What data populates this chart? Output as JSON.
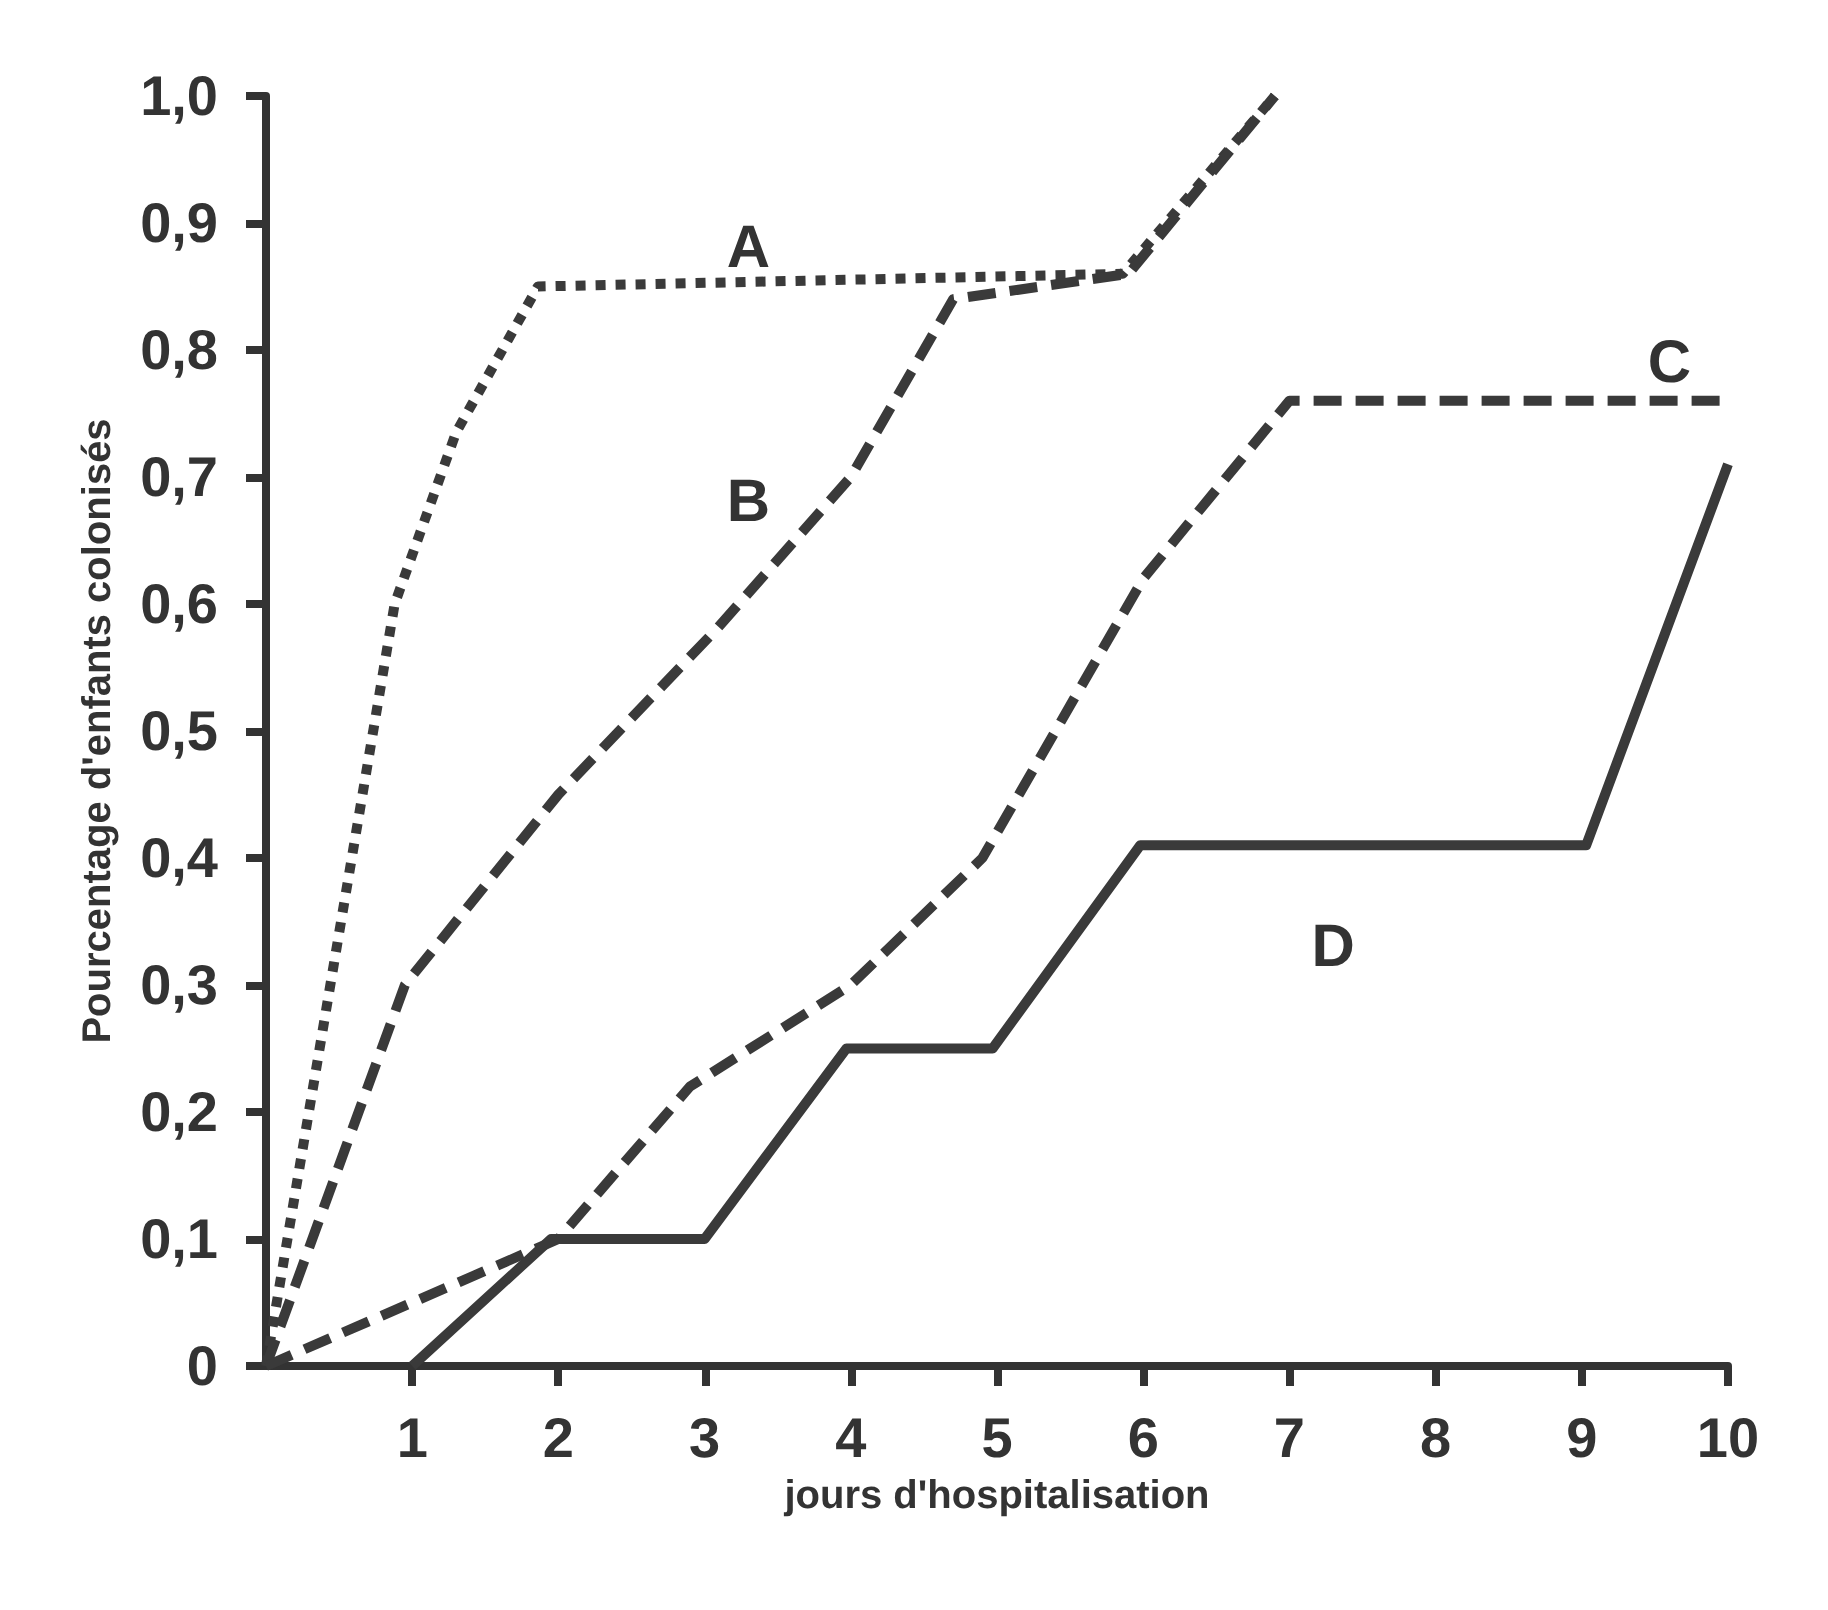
{
  "chart_data": {
    "type": "line",
    "xlabel": "jours d'hospitalisation",
    "ylabel": "Pourcentage d'enfants colonisés",
    "xlim": [
      0,
      10
    ],
    "xticks": [
      1,
      2,
      3,
      4,
      5,
      6,
      7,
      8,
      9,
      10
    ],
    "ylim": [
      0,
      1
    ],
    "yticks": [
      0,
      {
        "value": 0.1,
        "label": "0,1"
      },
      {
        "value": 0.2,
        "label": "0,2"
      },
      {
        "value": 0.3,
        "label": "0,3"
      },
      {
        "value": 0.4,
        "label": "0,4"
      },
      {
        "value": 0.5,
        "label": "0,5"
      },
      {
        "value": 0.6,
        "label": "0,6"
      },
      {
        "value": 0.7,
        "label": "0,7"
      },
      {
        "value": 0.8,
        "label": "0,8"
      },
      {
        "value": 0.9,
        "label": "0,9"
      },
      {
        "value": 1,
        "label": "1,0"
      }
    ],
    "grid": false,
    "marker": "none",
    "series": [
      {
        "name": "A",
        "color": "#3a3a3a",
        "line_style": "dotted",
        "x": [
          0,
          0.88,
          1.3,
          1.86,
          5.86,
          6.9
        ],
        "values": [
          0,
          0.6,
          0.735,
          0.85,
          0.86,
          1.0
        ]
      },
      {
        "name": "B",
        "color": "#3a3a3a",
        "line_style": "dashed",
        "x": [
          0,
          0.95,
          2,
          3.08,
          4,
          4.7,
          5.9,
          6.9
        ],
        "values": [
          0,
          0.3,
          0.45,
          0.58,
          0.7,
          0.84,
          0.86,
          1.0
        ]
      },
      {
        "name": "C",
        "color": "#3a3a3a",
        "line_style": "dashed",
        "x": [
          0,
          1,
          2,
          2.9,
          4,
          4.9,
          6,
          7,
          10
        ],
        "values": [
          0,
          0.05,
          0.1,
          0.22,
          0.3,
          0.4,
          0.62,
          0.76,
          0.76
        ]
      },
      {
        "name": "D",
        "color": "#3a3a3a",
        "line_style": "solid",
        "x": [
          1,
          1.95,
          3,
          3.97,
          4.97,
          5.98,
          9.03,
          10
        ],
        "values": [
          0,
          0.1,
          0.1,
          0.25,
          0.25,
          0.41,
          0.41,
          0.71
        ]
      }
    ]
  }
}
